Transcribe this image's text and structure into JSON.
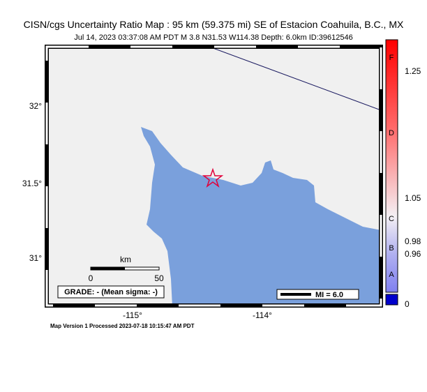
{
  "header": {
    "title": "CISN/cgs Uncertainty Ratio Map : 95 km (59.375 mi) SE of Estacion Coahuila, B.C., MX",
    "subtitle": "Jul 14, 2023 03:37:08 AM PDT   M 3.8   N31.53 W114.38   Depth: 6.0km   ID:39612546"
  },
  "map": {
    "lat_labels": [
      "32°",
      "31.5°",
      "31°"
    ],
    "lon_labels": [
      "-115°",
      "-114°"
    ]
  },
  "scale": {
    "unit": "km",
    "labels": [
      "0",
      "50"
    ]
  },
  "grade": "GRADE: - (Mean sigma: -)",
  "mi_legend": "MI = 6.0",
  "footer": "Map Version 1 Processed 2023-07-18 10:15:47 AM PDT",
  "colorbar": {
    "letters": [
      "F",
      "D",
      "C",
      "B",
      "A"
    ],
    "values": [
      "1.25",
      "1.05",
      "0.98",
      "0.96",
      "0"
    ]
  }
}
